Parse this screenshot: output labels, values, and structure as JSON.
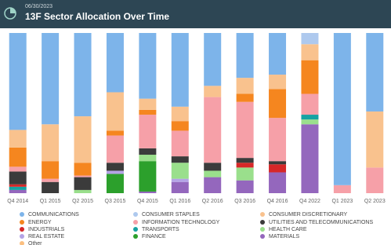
{
  "date": "06/30/2023",
  "chart_data": {
    "type": "stacked_bar",
    "title": "13F Sector Allocation Over Time",
    "categories": [
      "Q4 2014",
      "Q1 2015",
      "Q2 2015",
      "Q3 2015",
      "Q4 2015",
      "Q1 2016",
      "Q2 2016",
      "Q3 2016",
      "Q4 2016",
      "Q4 2022",
      "Q1 2023",
      "Q2 2023"
    ],
    "ylim": [
      0,
      100
    ],
    "series": [
      {
        "name": "COMMUNICATIONS",
        "color": "#7db4ea",
        "values": [
          60.5,
          57,
          52,
          37,
          41,
          46,
          33,
          28,
          26,
          0,
          95,
          49
        ]
      },
      {
        "name": "CONSUMER STAPLES",
        "color": "#aec9ee",
        "values": [
          0,
          0,
          0,
          0,
          0,
          0,
          0,
          0,
          0,
          7,
          0,
          0
        ]
      },
      {
        "name": "CONSUMER DISCRETIONARY",
        "color": "#f9c28e",
        "values": [
          11,
          23,
          29,
          24,
          7,
          9,
          7,
          10,
          9,
          10,
          0,
          35
        ]
      },
      {
        "name": "ENERGY",
        "color": "#f5861f",
        "values": [
          12,
          11,
          8,
          3,
          3,
          6,
          0,
          5,
          18,
          21,
          0,
          0
        ]
      },
      {
        "name": "INFORMATION TECHNOLOGY",
        "color": "#f6a0a8",
        "values": [
          3,
          2,
          1,
          17,
          21,
          16,
          41,
          35,
          27,
          13,
          5,
          16
        ]
      },
      {
        "name": "UTILITIES AND TELECOMMUNICATIONS",
        "color": "#3b3b3b",
        "values": [
          8,
          7,
          8,
          5,
          4,
          4,
          5,
          3,
          2,
          0,
          0,
          0
        ]
      },
      {
        "name": "INDUSTRIALS",
        "color": "#d62728",
        "values": [
          1.5,
          0,
          0,
          0,
          0,
          0,
          0,
          3,
          5,
          0,
          0,
          0
        ]
      },
      {
        "name": "TRANSPORTS",
        "color": "#17a2a2",
        "values": [
          2,
          0,
          0,
          0,
          0,
          0,
          0,
          0,
          0,
          3,
          0,
          0
        ]
      },
      {
        "name": "HEALTH CARE",
        "color": "#9adf8c",
        "values": [
          0,
          0,
          2,
          0,
          4,
          10,
          4,
          8,
          0,
          3,
          0,
          0
        ]
      },
      {
        "name": "REAL ESTATE",
        "color": "#b4a3e6",
        "values": [
          0,
          0,
          0,
          2,
          0,
          2,
          0,
          0,
          0,
          0,
          0,
          0
        ]
      },
      {
        "name": "FINANCE",
        "color": "#2ca02c",
        "values": [
          0,
          0,
          0,
          12,
          19,
          0,
          0,
          0,
          0,
          0,
          0,
          0
        ]
      },
      {
        "name": "MATERIALS",
        "color": "#9467bd",
        "values": [
          2,
          0,
          0,
          0,
          1,
          7,
          10,
          8,
          13,
          43,
          0,
          0
        ]
      },
      {
        "name": "Other",
        "color": "#fbbf80",
        "values": [
          0,
          0,
          0,
          0,
          0,
          0,
          0,
          0,
          0,
          0,
          0,
          0
        ]
      }
    ]
  }
}
